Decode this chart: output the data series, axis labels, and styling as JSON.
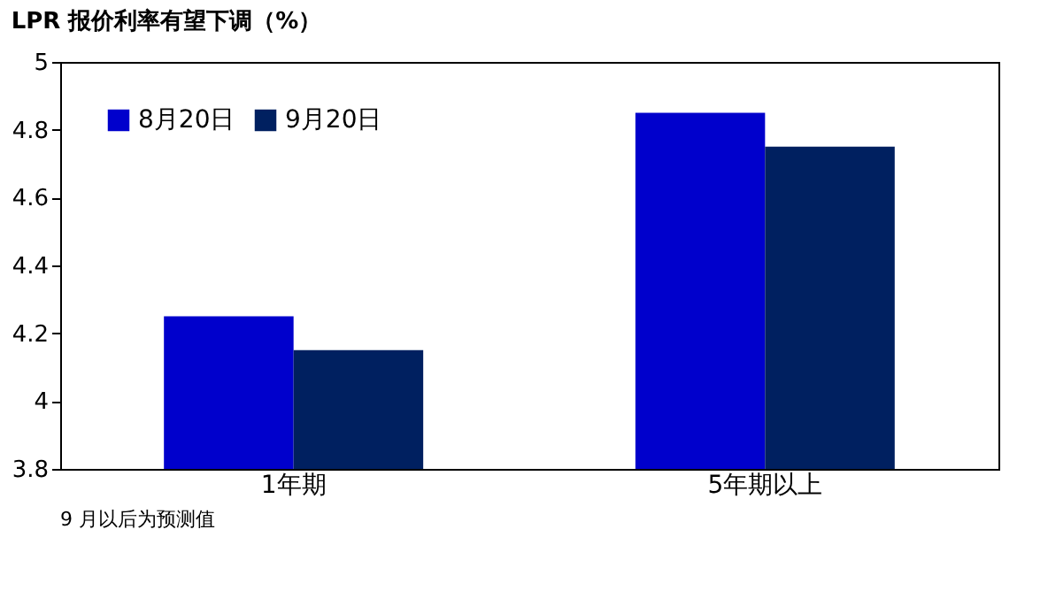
{
  "chart_data": {
    "type": "bar",
    "title": "LPR 报价利率有望下调（%）",
    "categories": [
      "1年期",
      "5年期以上"
    ],
    "series": [
      {
        "name": "8月20日",
        "color": "#0000cc",
        "values": [
          4.25,
          4.85
        ]
      },
      {
        "name": "9月20日",
        "color": "#002060",
        "values": [
          4.15,
          4.75
        ]
      }
    ],
    "ylim": [
      3.8,
      5
    ],
    "yticks": [
      3.8,
      4,
      4.2,
      4.4,
      4.6,
      4.8,
      5
    ],
    "grid": false,
    "legend": "top left",
    "annotations": [
      "9 月以后为预测值"
    ]
  }
}
